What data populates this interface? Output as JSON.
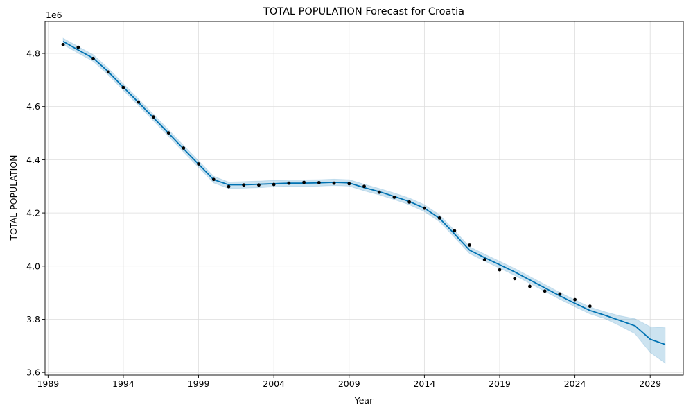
{
  "chart_data": {
    "type": "line",
    "title": "TOTAL POPULATION Forecast for Croatia",
    "xlabel": "Year",
    "ylabel": "TOTAL POPULATION",
    "y_offset_label": "1e6",
    "y_multiplier": 1000000,
    "xlim": [
      1988.8,
      1992.2
    ],
    "ylim": [
      3.59,
      4.92
    ],
    "x_ticks": [
      1989,
      1994,
      1999,
      2004,
      2009,
      2014,
      2019,
      2024,
      2029
    ],
    "y_ticks": [
      3.6,
      3.8,
      4.0,
      4.2,
      4.4,
      4.6,
      4.8
    ],
    "y_tick_labels": [
      "3.6",
      "3.8",
      "4.0",
      "4.2",
      "4.4",
      "4.6",
      "4.8"
    ],
    "grid": true,
    "colors": {
      "forecast_line": "#0072B2",
      "interval_fill": "#0072B2",
      "observed_points": "#000000",
      "grid": "#dddddd"
    },
    "observed": {
      "x": [
        1990,
        1991,
        1992,
        1993,
        1994,
        1995,
        1996,
        1997,
        1998,
        1999,
        2000,
        2001,
        2002,
        2003,
        2004,
        2005,
        2006,
        2007,
        2008,
        2009,
        2010,
        2011,
        2012,
        2013,
        2014,
        2015,
        2016,
        2017,
        2018,
        2019,
        2020,
        2021,
        2022,
        2023,
        2024,
        2025
      ],
      "y": [
        4.833,
        4.823,
        4.781,
        4.73,
        4.672,
        4.617,
        4.561,
        4.501,
        4.444,
        4.384,
        4.326,
        4.299,
        4.305,
        4.305,
        4.307,
        4.312,
        4.315,
        4.314,
        4.312,
        4.31,
        4.3,
        4.278,
        4.259,
        4.241,
        4.218,
        4.181,
        4.133,
        4.079,
        4.024,
        3.986,
        3.953,
        3.924,
        3.906,
        3.895,
        3.874,
        3.849
      ]
    },
    "forecast": {
      "x": [
        1990,
        1991,
        1992,
        1993,
        1994,
        1995,
        1996,
        1997,
        1998,
        1999,
        2000,
        2001,
        2002,
        2003,
        2004,
        2005,
        2006,
        2007,
        2008,
        2009,
        2010,
        2011,
        2012,
        2013,
        2014,
        2015,
        2016,
        2017,
        2018,
        2019,
        2020,
        2021,
        2022,
        2023,
        2024,
        2025,
        2026,
        2027,
        2028,
        2029,
        2030
      ],
      "y": [
        4.845,
        4.813,
        4.782,
        4.731,
        4.673,
        4.616,
        4.558,
        4.5,
        4.441,
        4.383,
        4.325,
        4.306,
        4.306,
        4.308,
        4.31,
        4.312,
        4.312,
        4.313,
        4.315,
        4.313,
        4.295,
        4.28,
        4.262,
        4.243,
        4.218,
        4.18,
        4.121,
        4.06,
        4.032,
        4.005,
        3.978,
        3.948,
        3.918,
        3.888,
        3.86,
        3.833,
        3.815,
        3.795,
        3.775,
        3.725,
        3.705
      ],
      "upper": [
        4.857,
        4.826,
        4.795,
        4.744,
        4.686,
        4.629,
        4.571,
        4.513,
        4.454,
        4.396,
        4.338,
        4.316,
        4.318,
        4.32,
        4.322,
        4.324,
        4.324,
        4.325,
        4.327,
        4.325,
        4.308,
        4.292,
        4.275,
        4.256,
        4.231,
        4.193,
        4.134,
        4.073,
        4.045,
        4.018,
        3.991,
        3.961,
        3.931,
        3.901,
        3.873,
        3.846,
        3.828,
        3.813,
        3.802,
        3.772,
        3.768
      ],
      "lower": [
        4.833,
        4.801,
        4.77,
        4.719,
        4.661,
        4.604,
        4.546,
        4.488,
        4.429,
        4.371,
        4.313,
        4.292,
        4.293,
        4.295,
        4.298,
        4.3,
        4.3,
        4.301,
        4.303,
        4.301,
        4.283,
        4.268,
        4.25,
        4.231,
        4.205,
        4.167,
        4.108,
        4.047,
        4.019,
        3.992,
        3.965,
        3.935,
        3.905,
        3.875,
        3.847,
        3.82,
        3.802,
        3.775,
        3.745,
        3.675,
        3.635
      ]
    }
  }
}
